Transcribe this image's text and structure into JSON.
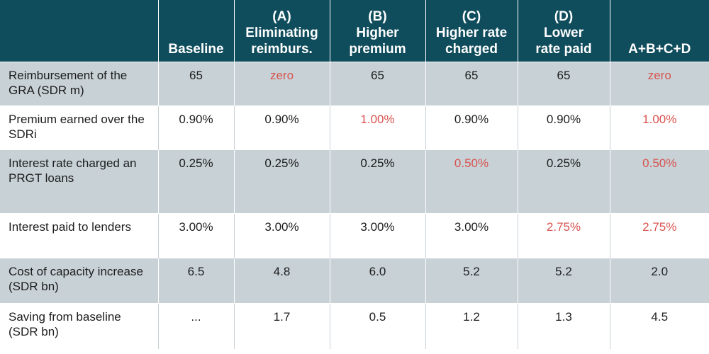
{
  "header": {
    "blank": "",
    "baseline": "Baseline",
    "a": {
      "letter": "(A)",
      "line1": "Eliminating",
      "line2": "reimburs."
    },
    "b": {
      "letter": "(B)",
      "line1": "Higher",
      "line2": "premium"
    },
    "c": {
      "letter": "(C)",
      "line1": "Higher rate",
      "line2": "charged"
    },
    "d": {
      "letter": "(D)",
      "line1": "Lower",
      "line2": "rate paid"
    },
    "combined": "A+B+C+D"
  },
  "rows": [
    {
      "label": "Reimbursement of the GRA (SDR m)",
      "values": [
        "65",
        "zero",
        "65",
        "65",
        "65",
        "zero"
      ]
    },
    {
      "label": "Premium earned over the SDRi",
      "values": [
        "0.90%",
        "0.90%",
        "1.00%",
        "0.90%",
        "0.90%",
        "1.00%"
      ]
    },
    {
      "label": "Interest rate charged an PRGT loans",
      "values": [
        "0.25%",
        "0.25%",
        "0.25%",
        "0.50%",
        "0.25%",
        "0.50%"
      ]
    },
    {
      "label": "Interest paid to lenders",
      "values": [
        "3.00%",
        "3.00%",
        "3.00%",
        "3.00%",
        "2.75%",
        "2.75%"
      ]
    },
    {
      "label": "Cost of capacity increase (SDR bn)",
      "values": [
        "6.5",
        "4.8",
        "6.0",
        "5.2",
        "5.2",
        "2.0"
      ]
    },
    {
      "label": "Saving from baseline (SDR bn)",
      "values": [
        "...",
        "1.7",
        "0.5",
        "1.2",
        "1.3",
        "4.5"
      ]
    }
  ],
  "colors": {
    "header_bg": "#0f4c5c",
    "shaded_row": "#c7d1d6",
    "highlight_text": "#d9534f"
  }
}
